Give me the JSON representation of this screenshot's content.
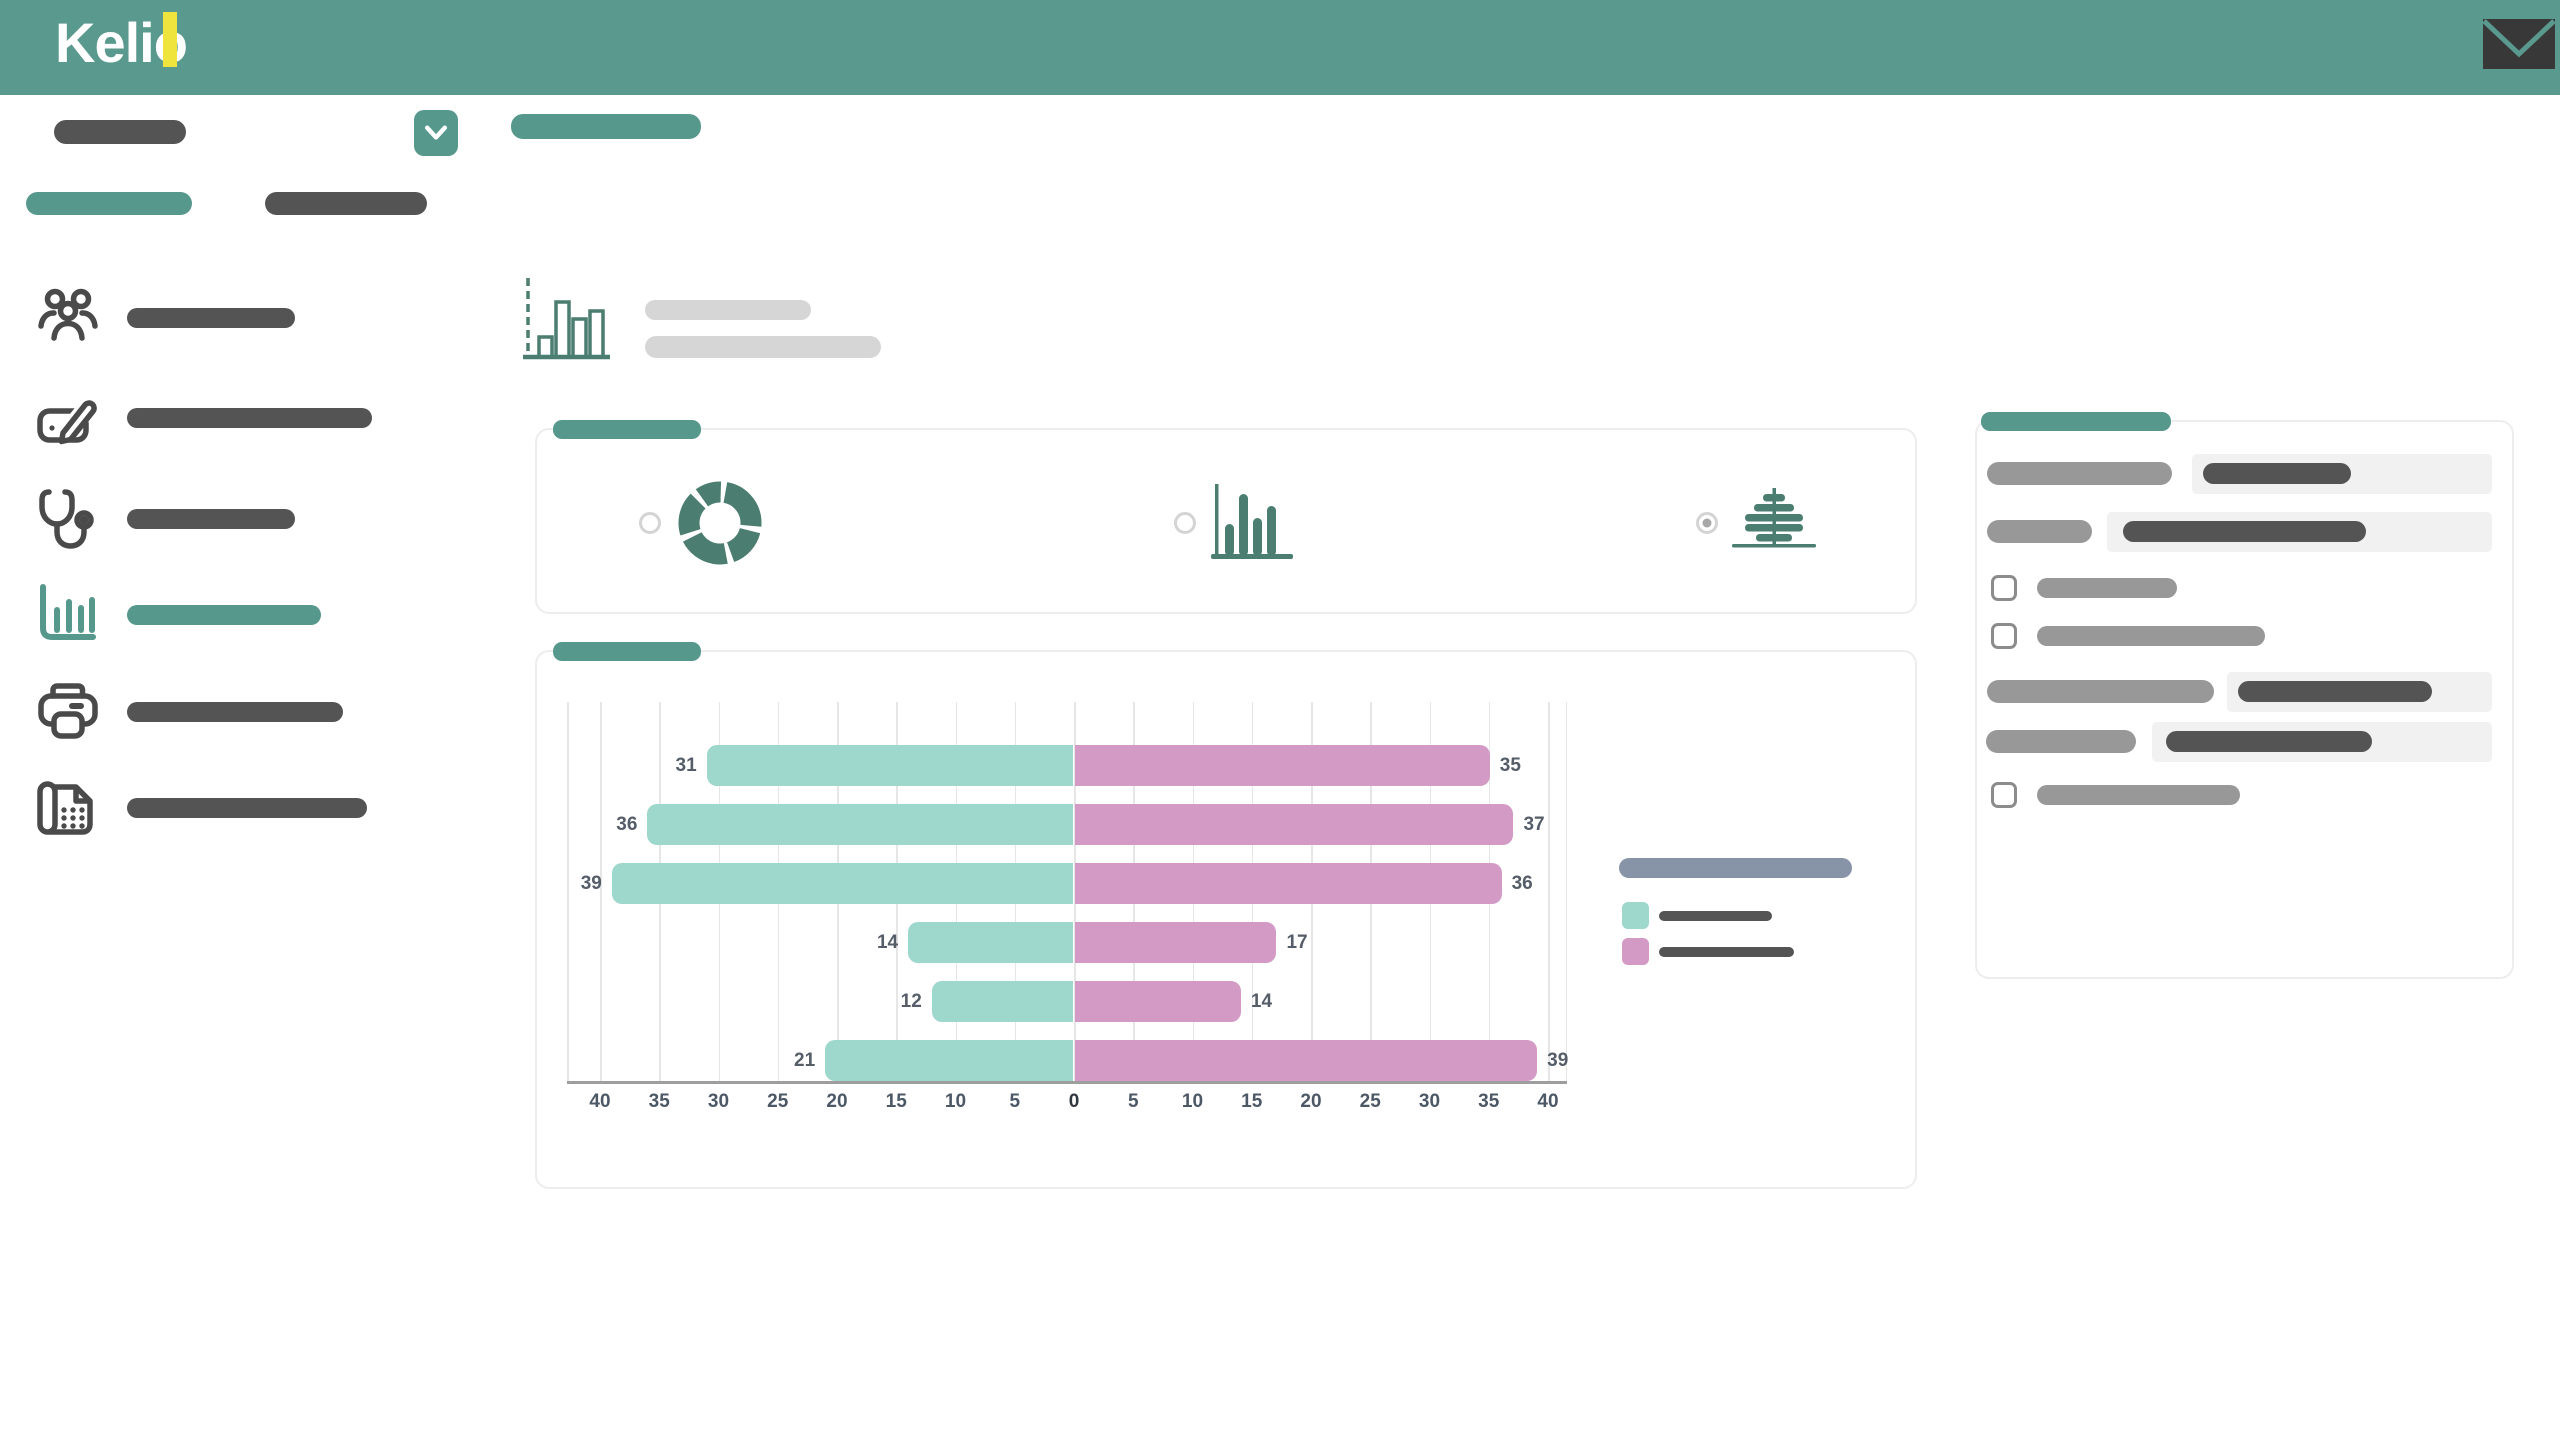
{
  "app": {
    "logo_text": "Kelio"
  },
  "colors": {
    "header": "#5a998e",
    "accent": "#57988c",
    "logo_accent": "#efe33d",
    "dark_pill": "#545454",
    "gray_pill": "#989898",
    "light_pill": "#d6d6d6",
    "legend_title": "#8794a8",
    "icon_gray": "#4a4a4a",
    "icon_teal": "#4b7e71",
    "series_left": "#9ed7cb",
    "series_right": "#d49ac6",
    "input_bg": "#f1f1f1",
    "card_border": "#ededed",
    "axis": "#9e9e9e",
    "grid": "#e6e6e6",
    "tick_text": "#4d5866",
    "value_text": "#555d68",
    "envelope": "#383838"
  },
  "sidebar": {
    "items": [
      {
        "icon": "users-group-icon",
        "active": false
      },
      {
        "icon": "edit-register-icon",
        "active": false
      },
      {
        "icon": "stethoscope-icon",
        "active": false
      },
      {
        "icon": "bar-chart-icon",
        "active": true
      },
      {
        "icon": "printer-icon",
        "active": false
      },
      {
        "icon": "fax-machine-icon",
        "active": false
      }
    ]
  },
  "chart_selector": {
    "options": [
      {
        "id": "donut",
        "icon": "donut-chart-icon",
        "selected": false
      },
      {
        "id": "bars",
        "icon": "column-chart-icon",
        "selected": false
      },
      {
        "id": "pyramid",
        "icon": "pyramid-chart-icon",
        "selected": true
      }
    ]
  },
  "chart_data": {
    "type": "bar",
    "subtype": "population-pyramid",
    "orientation": "horizontal",
    "categories": [
      "",
      "",
      "",
      "",
      "",
      ""
    ],
    "series": [
      {
        "name": "left-series (legend label redacted)",
        "color": "#9ed7cb",
        "values": [
          31,
          36,
          39,
          14,
          12,
          21
        ]
      },
      {
        "name": "right-series (legend label redacted)",
        "color": "#d49ac6",
        "values": [
          35,
          37,
          36,
          17,
          14,
          39
        ]
      }
    ],
    "value_labels_shown": true,
    "x_ticks": [
      "40",
      "35",
      "30",
      "25",
      "20",
      "15",
      "10",
      "5",
      "0",
      "5",
      "10",
      "15",
      "20",
      "25",
      "30",
      "35",
      "40"
    ],
    "x_tick_step": 5,
    "xlim_each_side": 40,
    "grid": true,
    "legend_position": "right"
  },
  "right_panel": {
    "rows": [
      {
        "type": "field"
      },
      {
        "type": "field"
      },
      {
        "type": "checkbox",
        "checked": false
      },
      {
        "type": "checkbox",
        "checked": false
      },
      {
        "type": "field"
      },
      {
        "type": "field"
      },
      {
        "type": "checkbox",
        "checked": false
      }
    ]
  }
}
